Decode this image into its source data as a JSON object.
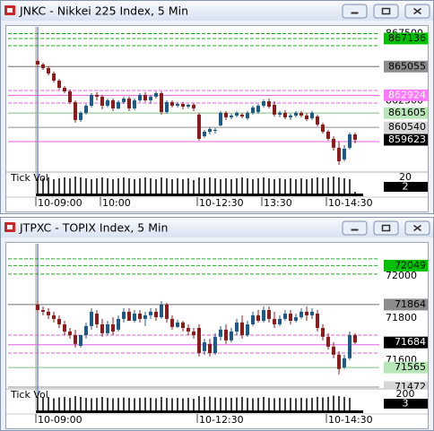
{
  "chart_data": [
    {
      "type": "candlestick",
      "title": "JNKC - Nikkei 225 Index, 5 Min",
      "up_color": "#1d5b86",
      "down_color": "#8e1b1b",
      "xlim": [
        -5.5,
        63.5
      ],
      "xticks": [
        {
          "value": 0,
          "label": "10-09:00"
        },
        {
          "value": 12,
          "label": "10:00"
        },
        {
          "value": 30,
          "label": "10-12:30"
        },
        {
          "value": 42,
          "label": "13:30"
        },
        {
          "value": 54,
          "label": "10-14:30"
        }
      ],
      "ylim": [
        857360,
        868000
      ],
      "yticks": [
        862500,
        867500
      ],
      "open": [
        865475,
        865210,
        864940,
        864540,
        864010,
        863480,
        863210,
        862410,
        861090,
        861620,
        862150,
        862950,
        862820,
        862150,
        862550,
        861950,
        862420,
        862680,
        861950,
        862550,
        862950,
        862550,
        862820,
        863080,
        861680,
        862420,
        862150,
        862280,
        862080,
        862220,
        861490,
        859890,
        860220,
        860290,
        860690,
        861620,
        861290,
        861420,
        861490,
        861220,
        861620,
        861680,
        862150,
        862480,
        862220,
        861490,
        861620,
        861290,
        861420,
        861620,
        861420,
        861220,
        861350,
        860750,
        860220,
        859690,
        859030,
        858160,
        859030,
        860020
      ],
      "high": [
        865675,
        865340,
        865080,
        864680,
        864150,
        863610,
        863350,
        862550,
        861750,
        862280,
        863080,
        863150,
        862950,
        862680,
        862680,
        862550,
        862820,
        862820,
        862680,
        863080,
        863150,
        862950,
        863210,
        863210,
        862550,
        862550,
        862420,
        862420,
        862280,
        862350,
        861620,
        860350,
        860550,
        860490,
        861750,
        861750,
        861550,
        861750,
        861620,
        861750,
        862150,
        862280,
        862620,
        862680,
        862480,
        861750,
        861820,
        861550,
        861750,
        861750,
        861620,
        861750,
        861490,
        860890,
        860350,
        859890,
        859490,
        859220,
        860150,
        860150
      ],
      "low": [
        865075,
        864810,
        864410,
        863880,
        863350,
        863080,
        862280,
        860890,
        860950,
        861490,
        862020,
        862550,
        861880,
        862020,
        861750,
        861880,
        862280,
        861750,
        861820,
        862420,
        862420,
        862280,
        862680,
        861490,
        861550,
        862020,
        862020,
        861880,
        861950,
        861750,
        859560,
        859760,
        860020,
        860090,
        860620,
        861090,
        861150,
        861290,
        861220,
        861090,
        861490,
        861550,
        862020,
        861950,
        861350,
        861290,
        861150,
        861090,
        861290,
        861290,
        861020,
        861090,
        860620,
        860090,
        859560,
        858830,
        857760,
        858030,
        858890,
        859360
      ],
      "close": [
        865210,
        864940,
        864540,
        864010,
        863480,
        863210,
        862410,
        861090,
        861620,
        862150,
        862950,
        862820,
        862150,
        862550,
        861950,
        862420,
        862680,
        861950,
        862550,
        862950,
        862550,
        862820,
        863080,
        861680,
        862420,
        862150,
        862280,
        862080,
        862220,
        861950,
        859690,
        860220,
        860420,
        860350,
        861620,
        861290,
        861420,
        861620,
        861350,
        861620,
        862020,
        862150,
        862480,
        862080,
        861490,
        861620,
        861290,
        861420,
        861620,
        861420,
        861150,
        861620,
        860750,
        860220,
        859690,
        859030,
        858030,
        858960,
        860020,
        859623
      ],
      "levels": [
        {
          "value": 867500,
          "color": "#20b020",
          "dash": true
        },
        {
          "value": 867136,
          "color": "#20b020",
          "dash": true
        },
        {
          "value": 866605,
          "color": "#20b020",
          "dash": true
        },
        {
          "value": 865055,
          "color": "#707070",
          "dash": false
        },
        {
          "value": 863280,
          "color": "#e060e0",
          "dash": true
        },
        {
          "value": 862924,
          "color": "#e060e0",
          "dash": false
        },
        {
          "value": 862350,
          "color": "#e060e0",
          "dash": true
        },
        {
          "value": 861605,
          "color": "#80c080",
          "dash": false
        },
        {
          "value": 860540,
          "color": "#909090",
          "dash": false
        },
        {
          "value": 859490,
          "color": "#e060e0",
          "dash": false
        }
      ],
      "price_labels": [
        {
          "value": 867136,
          "color": "#00c000",
          "text_color": "#000000"
        },
        {
          "value": 865055,
          "color": "#8c8c8c",
          "text_color": "#000000"
        },
        {
          "value": 862924,
          "color": "#ff78ff",
          "text_color": "#ffffff"
        },
        {
          "value": 861605,
          "color": "#b8e6b8",
          "text_color": "#000000"
        },
        {
          "value": 860540,
          "color": "#d6d6d6",
          "text_color": "#000000"
        }
      ],
      "volume": {
        "label": "Tick Vol",
        "ylim": [
          0,
          22
        ],
        "yticks": [
          20
        ],
        "values": [
          18,
          17,
          18,
          16,
          17,
          18,
          17,
          19,
          18,
          17,
          16,
          17,
          18,
          17,
          16,
          17,
          18,
          17,
          16,
          17,
          18,
          17,
          16,
          18,
          17,
          16,
          17,
          16,
          17,
          15,
          18,
          17,
          18,
          17,
          16,
          17,
          16,
          17,
          18,
          17,
          16,
          17,
          18,
          17,
          16,
          17,
          16,
          17,
          16,
          17,
          16,
          17,
          18,
          17,
          18,
          19,
          18,
          17,
          16,
          2
        ]
      }
    },
    {
      "type": "candlestick",
      "title": "JTPXC - TOPIX Index, 5 Min",
      "up_color": "#1d5b86",
      "down_color": "#8e1b1b",
      "xlim": [
        -5.5,
        63.5
      ],
      "xticks": [
        {
          "value": 0,
          "label": "10-09:00"
        },
        {
          "value": 30,
          "label": "10-12:30"
        },
        {
          "value": 54,
          "label": "10-14:30"
        }
      ],
      "ylim": [
        71472,
        72153
      ],
      "yticks": [
        71600,
        71800,
        72000
      ],
      "open": [
        71864,
        71838,
        71830,
        71813,
        71796,
        71770,
        71736,
        71719,
        71668,
        71719,
        71762,
        71821,
        71770,
        71728,
        71770,
        71745,
        71796,
        71830,
        71787,
        71821,
        71796,
        71813,
        71830,
        71804,
        71864,
        71796,
        71758,
        71779,
        71753,
        71736,
        71753,
        71643,
        71677,
        71634,
        71711,
        71745,
        71694,
        71736,
        71779,
        71719,
        71770,
        71813,
        71787,
        71838,
        71796,
        71770,
        71796,
        71821,
        71787,
        71804,
        71830,
        71813,
        71821,
        71753,
        71711,
        71664,
        71626,
        71566,
        71609,
        71719
      ],
      "high": [
        71881,
        71855,
        71847,
        71830,
        71813,
        71787,
        71753,
        71745,
        71719,
        71779,
        71847,
        71838,
        71796,
        71787,
        71804,
        71813,
        71847,
        71847,
        71838,
        71838,
        71830,
        71847,
        71847,
        71881,
        71872,
        71813,
        71792,
        71787,
        71770,
        71753,
        71770,
        71702,
        71702,
        71728,
        71762,
        71770,
        71753,
        71796,
        71813,
        71787,
        71830,
        71838,
        71855,
        71855,
        71830,
        71813,
        71838,
        71838,
        71821,
        71847,
        71855,
        71847,
        71838,
        71770,
        71728,
        71685,
        71643,
        71626,
        71736,
        71728
      ],
      "low": [
        71821,
        71813,
        71796,
        71779,
        71753,
        71719,
        71702,
        71660,
        71660,
        71702,
        71745,
        71753,
        71711,
        71719,
        71719,
        71736,
        71779,
        71787,
        71779,
        71779,
        71762,
        71796,
        71787,
        71796,
        71779,
        71745,
        71753,
        71736,
        71719,
        71702,
        71617,
        71626,
        71617,
        71626,
        71694,
        71677,
        71685,
        71719,
        71702,
        71711,
        71762,
        71779,
        71779,
        71779,
        71753,
        71762,
        71787,
        71770,
        71779,
        71796,
        71787,
        71796,
        71736,
        71694,
        71651,
        71609,
        71532,
        71558,
        71600,
        71677
      ],
      "close": [
        71838,
        71830,
        71813,
        71796,
        71770,
        71736,
        71719,
        71677,
        71719,
        71762,
        71830,
        71770,
        71728,
        71770,
        71736,
        71796,
        71830,
        71787,
        71821,
        71796,
        71813,
        71830,
        71804,
        71864,
        71796,
        71758,
        71779,
        71753,
        71736,
        71719,
        71634,
        71685,
        71634,
        71711,
        71745,
        71694,
        71736,
        71779,
        71719,
        71770,
        71813,
        71787,
        71838,
        71796,
        71770,
        71796,
        71821,
        71787,
        71804,
        71830,
        71813,
        71830,
        71753,
        71711,
        71664,
        71626,
        71558,
        71609,
        71719,
        71684
      ],
      "levels": [
        {
          "value": 72081,
          "color": "#20b020",
          "dash": true
        },
        {
          "value": 72049,
          "color": "#20b020",
          "dash": true
        },
        {
          "value": 72009,
          "color": "#20b020",
          "dash": true
        },
        {
          "value": 71864,
          "color": "#707070",
          "dash": false
        },
        {
          "value": 71719,
          "color": "#e060e0",
          "dash": true
        },
        {
          "value": 71673,
          "color": "#e060e0",
          "dash": false
        },
        {
          "value": 71634,
          "color": "#e060e0",
          "dash": true
        },
        {
          "value": 71565,
          "color": "#80c080",
          "dash": false
        },
        {
          "value": 71472,
          "color": "#909090",
          "dash": false
        }
      ],
      "price_labels": [
        {
          "value": 72049,
          "color": "#00c000",
          "text_color": "#000000"
        },
        {
          "value": 71864,
          "color": "#8c8c8c",
          "text_color": "#000000"
        },
        {
          "value": 71565,
          "color": "#b8e6b8",
          "text_color": "#000000"
        },
        {
          "value": 71472,
          "color": "#d6d6d6",
          "text_color": "#000000"
        }
      ],
      "volume": {
        "label": "Tick Vol",
        "ylim": [
          0,
          220
        ],
        "yticks": [
          200
        ],
        "values": [
          150,
          140,
          150,
          135,
          145,
          150,
          140,
          160,
          150,
          140,
          135,
          140,
          150,
          140,
          135,
          140,
          145,
          140,
          135,
          140,
          145,
          140,
          135,
          150,
          140,
          135,
          140,
          135,
          140,
          130,
          160,
          150,
          155,
          145,
          140,
          145,
          140,
          145,
          150,
          140,
          135,
          140,
          150,
          140,
          135,
          140,
          135,
          140,
          135,
          140,
          135,
          140,
          150,
          145,
          150,
          165,
          160,
          150,
          140,
          3
        ]
      }
    }
  ]
}
